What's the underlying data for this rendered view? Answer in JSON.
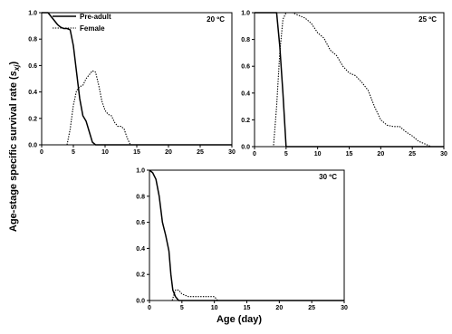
{
  "chart_data": {
    "type": "line",
    "xlabel": "Age (day)",
    "ylabel_prefix": "Age-stage specific survival rate (",
    "ylabel_symbol": "s",
    "ylabel_subscript": "xj",
    "ylabel_suffix": ")",
    "xlim": [
      0,
      30
    ],
    "ylim": [
      0,
      1.0
    ],
    "x_ticks": [
      "0",
      "5",
      "10",
      "15",
      "20",
      "25",
      "30"
    ],
    "y_ticks": [
      "0.0",
      "0.2",
      "0.4",
      "0.6",
      "0.8",
      "1.0"
    ],
    "legend": {
      "placement": "top-left of first panel",
      "entries": [
        {
          "label": "Pre-adult",
          "style": "solid"
        },
        {
          "label": "Female",
          "style": "dotted"
        }
      ]
    },
    "panels": [
      {
        "title": "20 ºC",
        "series": [
          {
            "name": "Pre-adult",
            "style": "solid",
            "points": [
              [
                0,
                1.0
              ],
              [
                1,
                1.0
              ],
              [
                1.5,
                0.97
              ],
              [
                2,
                0.94
              ],
              [
                2.5,
                0.91
              ],
              [
                3,
                0.89
              ],
              [
                3.5,
                0.88
              ],
              [
                4,
                0.88
              ],
              [
                4.5,
                0.87
              ],
              [
                5,
                0.75
              ],
              [
                5.5,
                0.55
              ],
              [
                6,
                0.35
              ],
              [
                6.5,
                0.22
              ],
              [
                7,
                0.18
              ],
              [
                7.5,
                0.1
              ],
              [
                8,
                0.02
              ],
              [
                8.5,
                0.0
              ],
              [
                30,
                0.0
              ]
            ]
          },
          {
            "name": "Female",
            "style": "dotted",
            "points": [
              [
                0,
                0.0
              ],
              [
                4,
                0.0
              ],
              [
                4.5,
                0.12
              ],
              [
                5,
                0.3
              ],
              [
                5.5,
                0.41
              ],
              [
                6,
                0.44
              ],
              [
                6.5,
                0.45
              ],
              [
                7,
                0.5
              ],
              [
                7.5,
                0.53
              ],
              [
                8,
                0.56
              ],
              [
                8.5,
                0.55
              ],
              [
                9,
                0.45
              ],
              [
                9.5,
                0.33
              ],
              [
                10,
                0.26
              ],
              [
                10.5,
                0.23
              ],
              [
                11,
                0.22
              ],
              [
                11.5,
                0.17
              ],
              [
                12,
                0.14
              ],
              [
                12.5,
                0.14
              ],
              [
                13,
                0.12
              ],
              [
                13.5,
                0.05
              ],
              [
                14,
                0.0
              ],
              [
                30,
                0.0
              ]
            ]
          }
        ]
      },
      {
        "title": "25 ºC",
        "series": [
          {
            "name": "Pre-adult",
            "style": "solid",
            "points": [
              [
                0,
                1.0
              ],
              [
                3,
                1.0
              ],
              [
                3.5,
                1.0
              ],
              [
                4,
                0.75
              ],
              [
                4.5,
                0.4
              ],
              [
                5,
                0.0
              ],
              [
                30,
                0.0
              ]
            ]
          },
          {
            "name": "Female",
            "style": "dotted",
            "points": [
              [
                0,
                0.0
              ],
              [
                3,
                0.0
              ],
              [
                3.5,
                0.3
              ],
              [
                4,
                0.7
              ],
              [
                4.5,
                0.95
              ],
              [
                5,
                1.0
              ],
              [
                6,
                1.0
              ],
              [
                7,
                0.98
              ],
              [
                8,
                0.96
              ],
              [
                9,
                0.92
              ],
              [
                10,
                0.85
              ],
              [
                11,
                0.81
              ],
              [
                12,
                0.72
              ],
              [
                13,
                0.68
              ],
              [
                14,
                0.6
              ],
              [
                15,
                0.55
              ],
              [
                16,
                0.53
              ],
              [
                17,
                0.48
              ],
              [
                18,
                0.42
              ],
              [
                19,
                0.3
              ],
              [
                20,
                0.2
              ],
              [
                21,
                0.16
              ],
              [
                22,
                0.15
              ],
              [
                23,
                0.15
              ],
              [
                24,
                0.11
              ],
              [
                25,
                0.08
              ],
              [
                26,
                0.04
              ],
              [
                27,
                0.02
              ],
              [
                28,
                0.0
              ],
              [
                30,
                0.0
              ]
            ]
          }
        ]
      },
      {
        "title": "30 ºC",
        "series": [
          {
            "name": "Pre-adult",
            "style": "solid",
            "points": [
              [
                0,
                1.0
              ],
              [
                0.5,
                0.98
              ],
              [
                1,
                0.93
              ],
              [
                1.5,
                0.8
              ],
              [
                2,
                0.6
              ],
              [
                2.5,
                0.5
              ],
              [
                3,
                0.38
              ],
              [
                3.3,
                0.2
              ],
              [
                3.6,
                0.08
              ],
              [
                4,
                0.03
              ],
              [
                4.5,
                0.0
              ],
              [
                30,
                0.0
              ]
            ]
          },
          {
            "name": "Female",
            "style": "dotted",
            "points": [
              [
                0,
                0.0
              ],
              [
                3.5,
                0.0
              ],
              [
                4,
                0.08
              ],
              [
                4.5,
                0.08
              ],
              [
                5,
                0.05
              ],
              [
                5.5,
                0.04
              ],
              [
                6,
                0.03
              ],
              [
                8,
                0.03
              ],
              [
                10,
                0.03
              ],
              [
                10.5,
                0.0
              ],
              [
                30,
                0.0
              ]
            ]
          }
        ]
      }
    ]
  }
}
